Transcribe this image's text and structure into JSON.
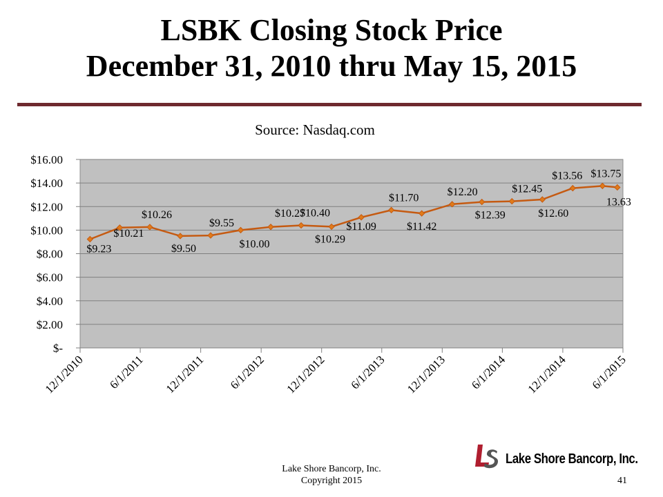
{
  "slide": {
    "title_line1": "LSBK Closing Stock Price",
    "title_line2": "December 31, 2010 thru May 15, 2015",
    "source": "Source:  Nasdaq.com",
    "footer_line1": "Lake Shore Bancorp, Inc.",
    "footer_line2": "Copyright 2015",
    "page_number": "41",
    "logo_text": "Lake Shore Bancorp, Inc.",
    "logo_mark": "LS"
  },
  "colors": {
    "plot_background": "#c0c0c0",
    "line": "#c55a11",
    "marker": "#e07b1a",
    "rule": "#6e2a2f",
    "logo_red": "#b01e2f",
    "logo_gray": "#555555"
  },
  "chart_data": {
    "type": "line",
    "title": "Source:  Nasdaq.com",
    "xlabel": "",
    "ylabel": "",
    "ylim": [
      0,
      16
    ],
    "yticks": [
      0,
      2,
      4,
      6,
      8,
      10,
      12,
      14,
      16
    ],
    "ytick_labels": [
      "$-",
      "$2.00",
      "$4.00",
      "$6.00",
      "$8.00",
      "$10.00",
      "$12.00",
      "$14.00",
      "$16.00"
    ],
    "x_axis_type": "date",
    "xlim": [
      "2010-12-01",
      "2015-06-01"
    ],
    "xticks": [
      "2010-12-01",
      "2011-06-01",
      "2011-12-01",
      "2012-06-01",
      "2012-12-01",
      "2013-06-01",
      "2013-12-01",
      "2014-06-01",
      "2014-12-01",
      "2015-06-01"
    ],
    "xtick_labels": [
      "12/1/2010",
      "6/1/2011",
      "12/1/2011",
      "6/1/2012",
      "12/1/2012",
      "6/1/2013",
      "12/1/2013",
      "6/1/2014",
      "12/1/2014",
      "6/1/2015"
    ],
    "grid": true,
    "legend": "none",
    "series": [
      {
        "points": [
          {
            "x": "2010-12-31",
            "y": 9.23,
            "label": "$9.23"
          },
          {
            "x": "2011-03-31",
            "y": 10.21,
            "label": "$10.21"
          },
          {
            "x": "2011-06-30",
            "y": 10.26,
            "label": "$10.26"
          },
          {
            "x": "2011-09-30",
            "y": 9.5,
            "label": "$9.50"
          },
          {
            "x": "2011-12-31",
            "y": 9.55,
            "label": "$9.55"
          },
          {
            "x": "2012-03-31",
            "y": 10.0,
            "label": "$10.00"
          },
          {
            "x": "2012-06-30",
            "y": 10.27,
            "label": "$10.27"
          },
          {
            "x": "2012-09-30",
            "y": 10.4,
            "label": "$10.40"
          },
          {
            "x": "2012-12-31",
            "y": 10.29,
            "label": "$10.29"
          },
          {
            "x": "2013-03-31",
            "y": 11.09,
            "label": "$11.09"
          },
          {
            "x": "2013-06-30",
            "y": 11.7,
            "label": "$11.70"
          },
          {
            "x": "2013-09-30",
            "y": 11.42,
            "label": "$11.42"
          },
          {
            "x": "2013-12-31",
            "y": 12.2,
            "label": "$12.20"
          },
          {
            "x": "2014-03-31",
            "y": 12.39,
            "label": "$12.39"
          },
          {
            "x": "2014-06-30",
            "y": 12.45,
            "label": "$12.45"
          },
          {
            "x": "2014-09-30",
            "y": 12.6,
            "label": "$12.60"
          },
          {
            "x": "2014-12-31",
            "y": 13.56,
            "label": "$13.56"
          },
          {
            "x": "2015-03-31",
            "y": 13.75,
            "label": "$13.75"
          },
          {
            "x": "2015-05-15",
            "y": 13.63,
            "label": "13.63"
          }
        ]
      }
    ]
  }
}
